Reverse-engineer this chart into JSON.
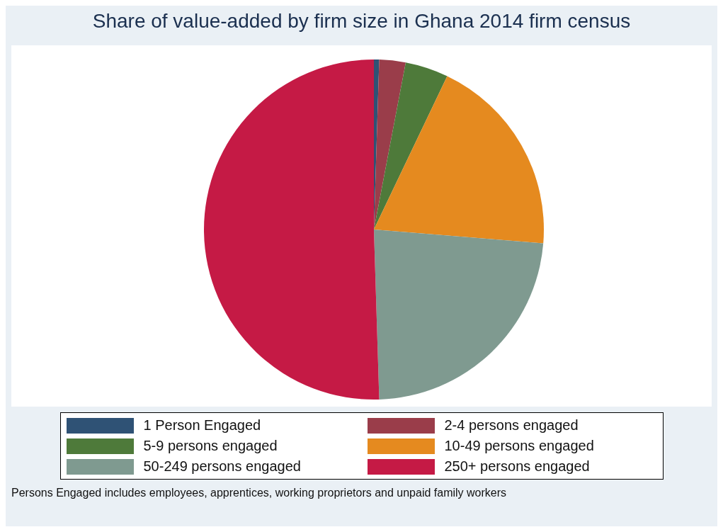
{
  "chart_data": {
    "type": "pie",
    "title": "Share of value-added by firm size in Ghana 2014 firm census",
    "categories": [
      "1 Person Engaged",
      "2-4 persons engaged",
      "5-9 persons engaged",
      "10-49 persons engaged",
      "50-249 persons engaged",
      "250+ persons engaged"
    ],
    "values": [
      0.5,
      2.5,
      4.1,
      19.2,
      23.2,
      50.5
    ],
    "colors": [
      "#2f5275",
      "#9a3d4a",
      "#4e7a3a",
      "#e58a1f",
      "#7f9a90",
      "#c51a45"
    ],
    "legend": "bottom",
    "annotations": [
      "Persons Engaged includes employees, apprentices, working proprietors and unpaid family workers"
    ]
  }
}
